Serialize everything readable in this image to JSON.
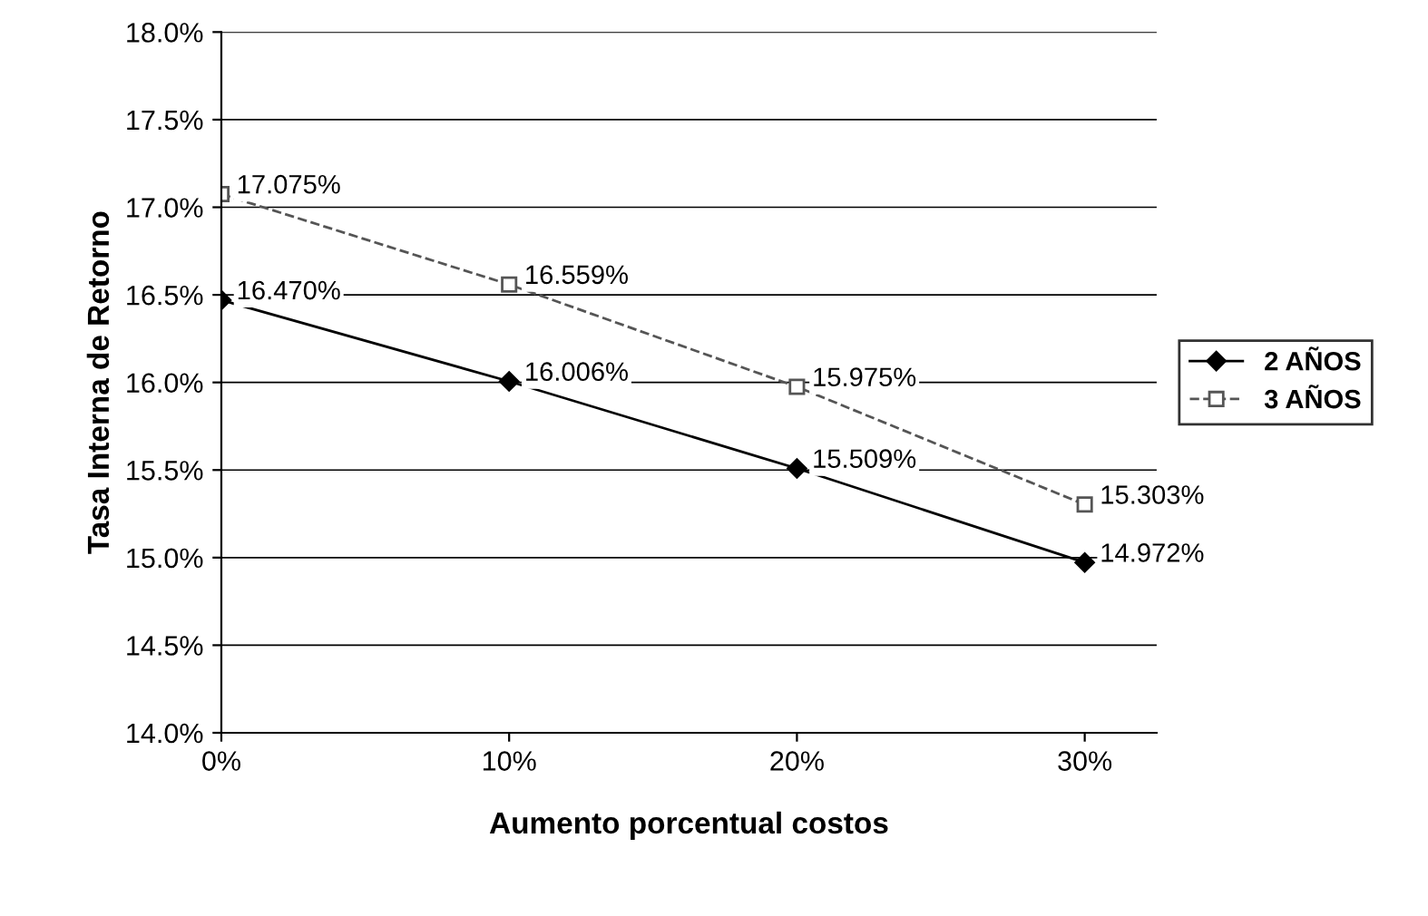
{
  "chart_data": {
    "type": "line",
    "xlabel": "Aumento porcentual costos",
    "ylabel": "Tasa Interna de Retorno",
    "categories": [
      "0%",
      "10%",
      "20%",
      "30%"
    ],
    "series": [
      {
        "name": "2 AÑOS",
        "color": "#000000",
        "marker": "diamond",
        "line_style": "solid",
        "values": [
          16.47,
          16.006,
          15.509,
          14.972
        ],
        "value_labels": [
          "16.470%",
          "16.006%",
          "15.509%",
          "14.972%"
        ]
      },
      {
        "name": "3 AÑOS",
        "color": "#555555",
        "marker": "square",
        "line_style": "dashed",
        "values": [
          17.075,
          16.559,
          15.975,
          15.303
        ],
        "value_labels": [
          "17.075%",
          "16.559%",
          "15.975%",
          "15.303%"
        ]
      }
    ],
    "ylim": [
      14,
      18
    ],
    "yticks": [
      {
        "value": 14,
        "label": "14.0%"
      },
      {
        "value": 14.5,
        "label": "14.5%"
      },
      {
        "value": 15,
        "label": "15.0%"
      },
      {
        "value": 15.5,
        "label": "15.5%"
      },
      {
        "value": 16,
        "label": "16.0%"
      },
      {
        "value": 16.5,
        "label": "16.5%"
      },
      {
        "value": 17,
        "label": "17.0%"
      },
      {
        "value": 17.5,
        "label": "17.5%"
      },
      {
        "value": 18,
        "label": "18.0%"
      }
    ],
    "grid": "y",
    "legend": "right"
  }
}
